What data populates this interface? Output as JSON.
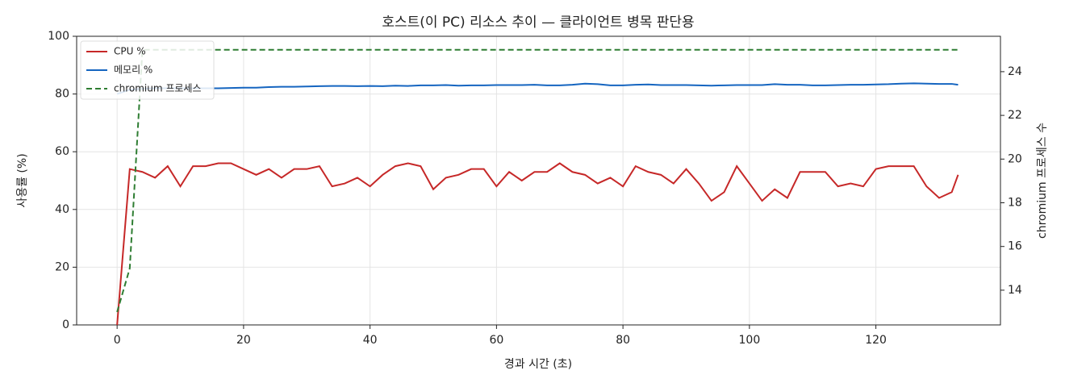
{
  "chart_data": {
    "type": "line",
    "title": "호스트(이 PC) 리소스 추이 — 클라이언트 병목 판단용",
    "xlabel": "경과 시간 (초)",
    "ylabel": "사용률 (%)",
    "y2label": "chromium 프로세스 수",
    "x": [
      0,
      2,
      4,
      6,
      8,
      10,
      12,
      14,
      16,
      18,
      20,
      22,
      24,
      26,
      28,
      30,
      32,
      34,
      36,
      38,
      40,
      42,
      44,
      46,
      48,
      50,
      52,
      54,
      56,
      58,
      60,
      62,
      64,
      66,
      68,
      70,
      72,
      74,
      76,
      78,
      80,
      82,
      84,
      86,
      88,
      90,
      92,
      94,
      96,
      98,
      100,
      102,
      104,
      106,
      108,
      110,
      112,
      114,
      116,
      118,
      120,
      122,
      124,
      126,
      128,
      130,
      132,
      133
    ],
    "series": [
      {
        "name": "CPU %",
        "color": "#c62828",
        "axis": "y",
        "dashed": false,
        "values": [
          0,
          54,
          53,
          51,
          55,
          48,
          55,
          55,
          56,
          56,
          54,
          52,
          54,
          51,
          54,
          54,
          55,
          48,
          49,
          51,
          48,
          52,
          55,
          56,
          55,
          47,
          51,
          52,
          54,
          54,
          48,
          53,
          50,
          53,
          53,
          56,
          53,
          52,
          49,
          51,
          48,
          55,
          53,
          52,
          49,
          54,
          49,
          43,
          46,
          55,
          49,
          43,
          47,
          44,
          53,
          53,
          53,
          48,
          49,
          48,
          54,
          55,
          55,
          55,
          48,
          44,
          46,
          52
        ]
      },
      {
        "name": "메모리 %",
        "color": "#1565c0",
        "axis": "y",
        "dashed": false,
        "values": [
          80,
          81.5,
          81.8,
          82,
          82,
          82,
          82,
          82,
          82,
          82.1,
          82.2,
          82.2,
          82.4,
          82.5,
          82.5,
          82.6,
          82.7,
          82.8,
          82.8,
          82.7,
          82.8,
          82.7,
          82.9,
          82.8,
          83,
          83,
          83.1,
          82.9,
          83,
          83,
          83.1,
          83.1,
          83.1,
          83.2,
          83,
          83,
          83.2,
          83.6,
          83.4,
          83,
          83,
          83.2,
          83.3,
          83.1,
          83.1,
          83.1,
          83,
          82.9,
          83,
          83.1,
          83.1,
          83.1,
          83.4,
          83.2,
          83.2,
          83,
          83,
          83.1,
          83.2,
          83.2,
          83.3,
          83.4,
          83.6,
          83.7,
          83.6,
          83.5,
          83.5,
          83.2
        ]
      },
      {
        "name": "chromium 프로세스",
        "color": "#2e7d32",
        "axis": "y2",
        "dashed": true,
        "values": [
          13,
          15,
          25,
          25,
          25,
          25,
          25,
          25,
          25,
          25,
          25,
          25,
          25,
          25,
          25,
          25,
          25,
          25,
          25,
          25,
          25,
          25,
          25,
          25,
          25,
          25,
          25,
          25,
          25,
          25,
          25,
          25,
          25,
          25,
          25,
          25,
          25,
          25,
          25,
          25,
          25,
          25,
          25,
          25,
          25,
          25,
          25,
          25,
          25,
          25,
          25,
          25,
          25,
          25,
          25,
          25,
          25,
          25,
          25,
          25,
          25,
          25,
          25,
          25,
          25,
          25,
          25,
          25
        ]
      }
    ],
    "xlim": [
      -6.4,
      139.7
    ],
    "xticks": [
      0,
      20,
      40,
      60,
      80,
      100,
      120
    ],
    "ylim": [
      0,
      100
    ],
    "yticks": [
      0,
      20,
      40,
      60,
      80,
      100
    ],
    "y2lim": [
      12.41,
      25.62
    ],
    "y2ticks": [
      14,
      16,
      18,
      20,
      22,
      24
    ],
    "grid": true,
    "legend": "upper left"
  }
}
